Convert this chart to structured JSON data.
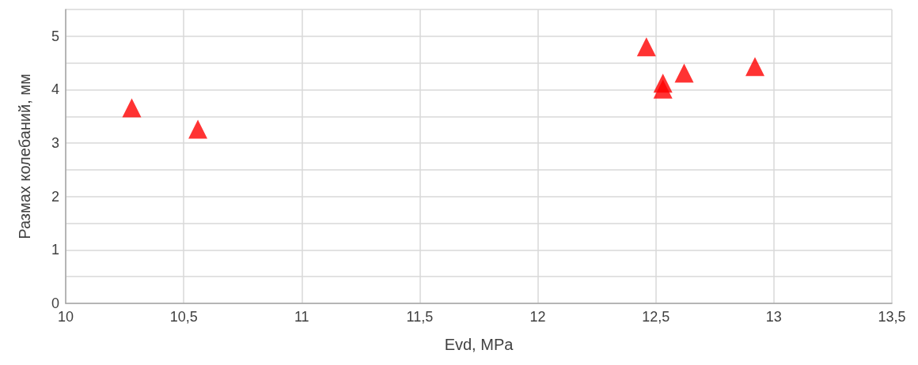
{
  "chart_data": {
    "type": "scatter",
    "xlabel": "Evd, MPa",
    "ylabel": "Размах колебаний, мм",
    "x": [
      10.28,
      10.56,
      12.46,
      12.53,
      12.53,
      12.62,
      12.92
    ],
    "values": [
      3.66,
      3.26,
      4.8,
      4.12,
      4.01,
      4.31,
      4.43
    ],
    "color": "#ff0000",
    "marker": "triangle",
    "xlim": [
      10,
      13.5
    ],
    "xticks": [
      10,
      {
        "value": 10.5,
        "label": "10,5"
      },
      11,
      {
        "value": 11.5,
        "label": "11,5"
      },
      12,
      {
        "value": 12.5,
        "label": "12,5"
      },
      13,
      {
        "value": 13.5,
        "label": "13,5"
      }
    ],
    "ylim": [
      0,
      5.5
    ],
    "yticks": [
      0,
      {
        "value": 0.5,
        "label": null
      },
      1,
      {
        "value": 1.5,
        "label": null
      },
      2,
      {
        "value": 2.5,
        "label": null
      },
      3,
      {
        "value": 3.5,
        "label": null
      },
      4,
      {
        "value": 4.5,
        "label": null
      },
      5,
      {
        "value": 5.5,
        "label": null
      }
    ],
    "grid": true
  }
}
